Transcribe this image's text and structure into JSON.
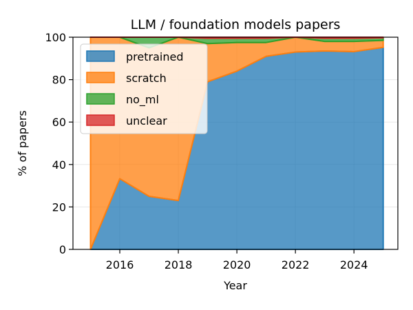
{
  "chart_data": {
    "type": "area",
    "stacked": true,
    "title": "LLM / foundation models papers",
    "xlabel": "Year",
    "ylabel": "% of papers",
    "x": [
      2015,
      2016,
      2017,
      2018,
      2019,
      2020,
      2021,
      2022,
      2023,
      2024,
      2025
    ],
    "xlim": [
      2014.4,
      2025.5
    ],
    "ylim": [
      0,
      100
    ],
    "xticks": [
      2016,
      2018,
      2020,
      2022,
      2024
    ],
    "yticks": [
      0,
      20,
      40,
      60,
      80,
      100
    ],
    "grid": true,
    "legend_position": "top-left",
    "series": [
      {
        "name": "pretrained",
        "color": "#1f77b4",
        "values": [
          0,
          33.3,
          25,
          23,
          79,
          84,
          91,
          93,
          93.5,
          93.2,
          95.2
        ]
      },
      {
        "name": "scratch",
        "color": "#ff7f0e",
        "values": [
          100,
          66.7,
          70,
          77,
          18,
          13.5,
          6.5,
          7,
          4.5,
          4.8,
          3.3
        ]
      },
      {
        "name": "no_ml",
        "color": "#2ca02c",
        "values": [
          0,
          0,
          5,
          0,
          2.5,
          2,
          2,
          0,
          1.5,
          1.5,
          1.2
        ]
      },
      {
        "name": "unclear",
        "color": "#d62728",
        "values": [
          0,
          0,
          0,
          0,
          0.5,
          0.5,
          0.5,
          0,
          0.5,
          0.5,
          0.3
        ]
      }
    ]
  }
}
